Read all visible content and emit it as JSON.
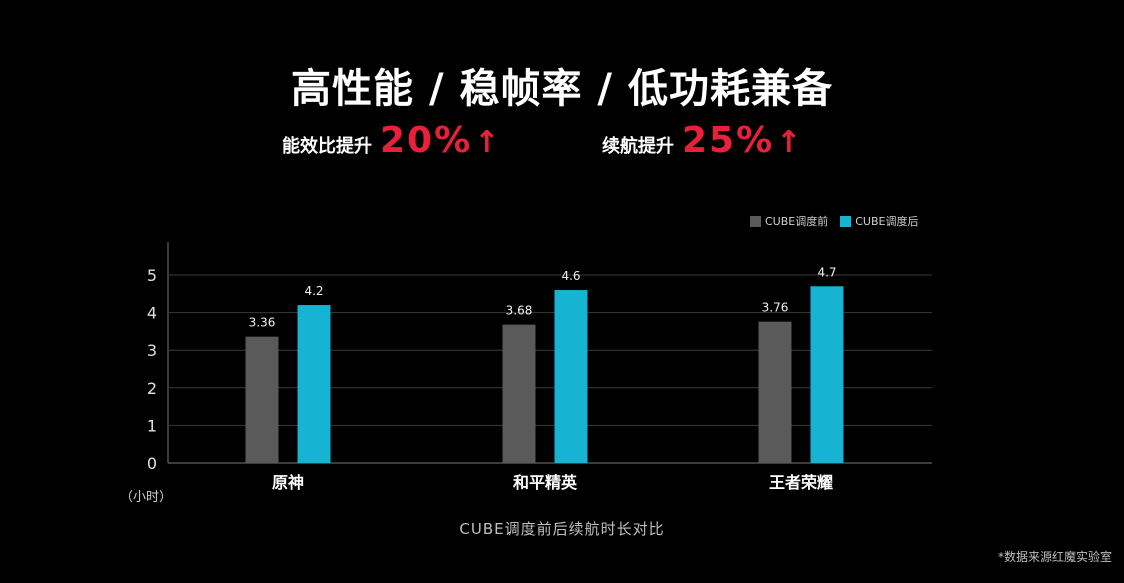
{
  "headline": {
    "title": "高性能 / 稳帧率 / 低功耗兼备",
    "stat1": {
      "label": "能效比提升",
      "value": "20%",
      "arrow": "↑"
    },
    "stat2": {
      "label": "续航提升",
      "value": "25%",
      "arrow": "↑"
    }
  },
  "footer": {
    "caption": "CUBE调度前后续航时长对比",
    "source": "*数据来源红魔实验室"
  },
  "colors": {
    "before": "#5a5a5a",
    "after": "#16b4d2",
    "accent": "#e8203a",
    "grid": "#3a3a3a"
  },
  "chart_data": {
    "type": "bar",
    "title": "",
    "xlabel": "",
    "ylabel": "（小时）",
    "ylim": [
      0,
      5
    ],
    "yticks": [
      0,
      1,
      2,
      3,
      4,
      5
    ],
    "categories": [
      "原神",
      "和平精英",
      "王者荣耀"
    ],
    "series": [
      {
        "name": "CUBE调度前",
        "values": [
          3.36,
          3.68,
          3.76
        ]
      },
      {
        "name": "CUBE调度后",
        "values": [
          4.2,
          4.6,
          4.7
        ]
      }
    ],
    "legend": "top-right",
    "grid": true
  }
}
